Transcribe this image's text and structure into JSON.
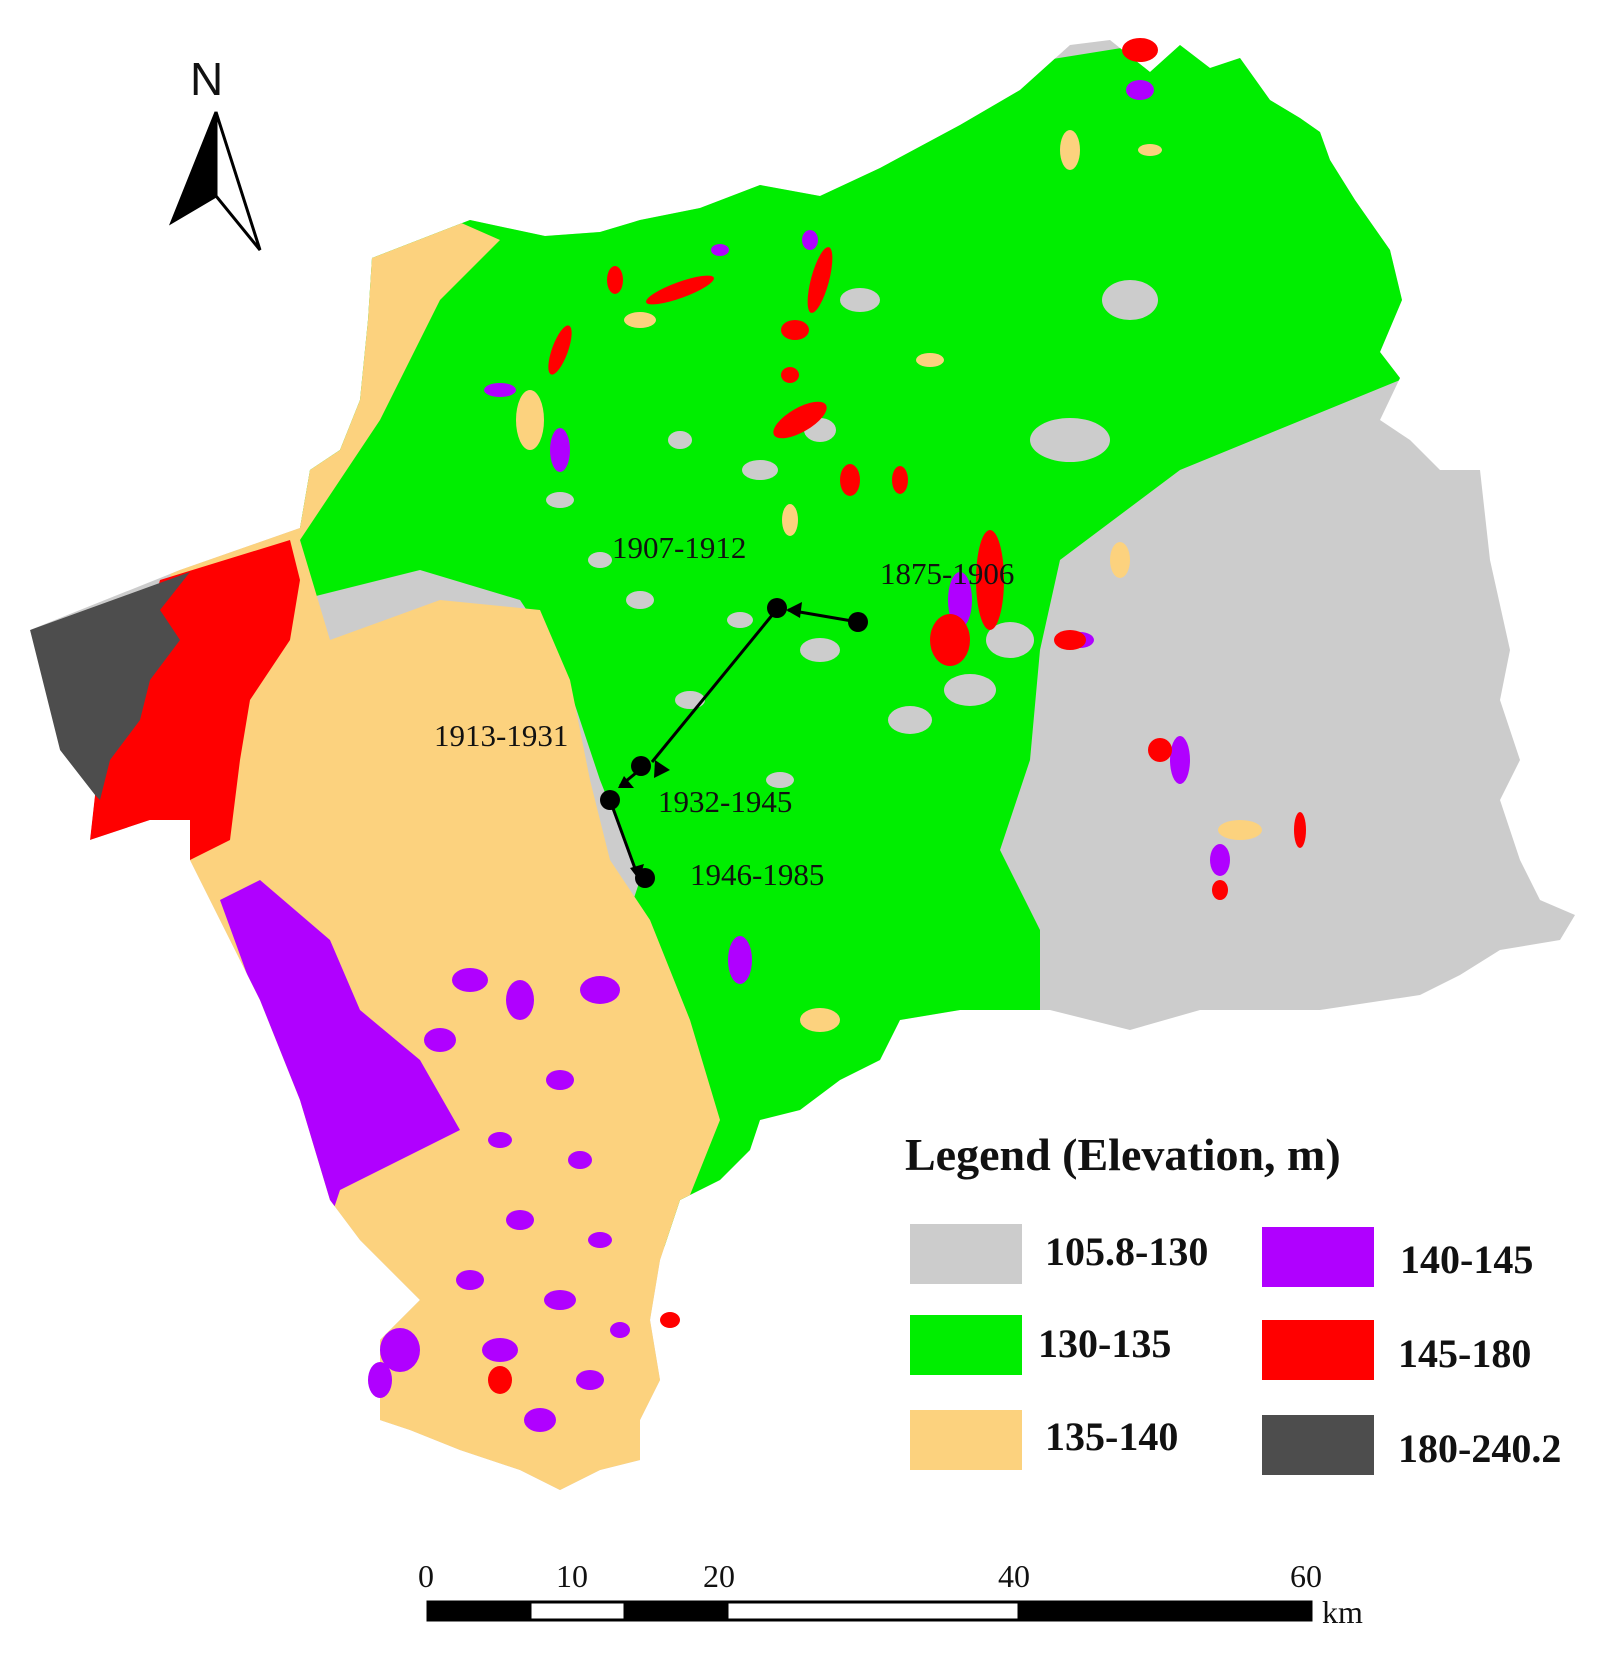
{
  "north": {
    "label": "N"
  },
  "colors": {
    "c1": "#cccccc",
    "c2": "#00ee00",
    "c3": "#fcd27e",
    "c4": "#b000ff",
    "c5": "#ff0000",
    "c6": "#4d4d4d",
    "track": "#000000"
  },
  "legend": {
    "title": "Legend (Elevation, m)",
    "items": [
      {
        "label": "105.8-130",
        "color": "#cccccc"
      },
      {
        "label": "130-135",
        "color": "#00ee00"
      },
      {
        "label": "135-140",
        "color": "#fcd27e"
      },
      {
        "label": "140-145",
        "color": "#b000ff"
      },
      {
        "label": "145-180",
        "color": "#ff0000"
      },
      {
        "label": "180-240.2",
        "color": "#4d4d4d"
      }
    ]
  },
  "periods": [
    "1875-1906",
    "1907-1912",
    "1913-1931",
    "1932-1945",
    "1946-1985"
  ],
  "scale_bar": {
    "ticks": [
      "0",
      "10",
      "20",
      "40",
      "60"
    ],
    "unit": "km"
  }
}
